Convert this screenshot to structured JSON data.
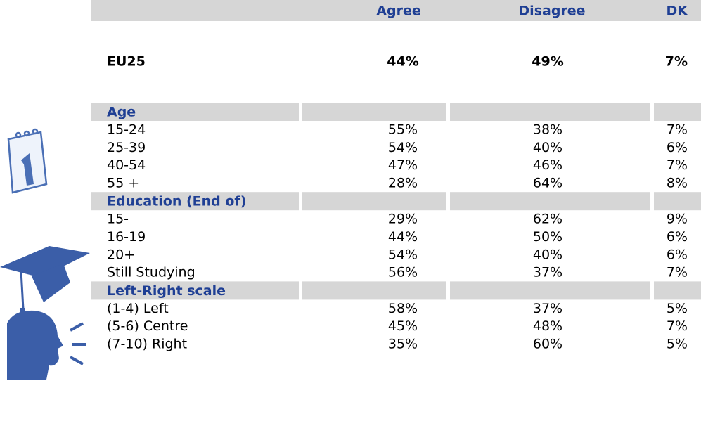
{
  "header": [
    "Agree",
    "Disagree",
    "DK"
  ],
  "total": {
    "label": "EU25",
    "values": [
      "44%",
      "49%",
      "7%"
    ]
  },
  "sections": [
    {
      "title": "Age",
      "rows": [
        {
          "label": "15-24",
          "values": [
            "55%",
            "38%",
            "7%"
          ]
        },
        {
          "label": "25-39",
          "values": [
            "54%",
            "40%",
            "6%"
          ]
        },
        {
          "label": "40-54",
          "values": [
            "47%",
            "46%",
            "7%"
          ]
        },
        {
          "label": "55 +",
          "values": [
            "28%",
            "64%",
            "8%"
          ]
        }
      ]
    },
    {
      "title": "Education (End of)",
      "rows": [
        {
          "label": "15-",
          "values": [
            "29%",
            "62%",
            "9%"
          ]
        },
        {
          "label": "16-19",
          "values": [
            "44%",
            "50%",
            "6%"
          ]
        },
        {
          "label": "20+",
          "values": [
            "54%",
            "40%",
            "6%"
          ]
        },
        {
          "label": "Still Studying",
          "values": [
            "56%",
            "37%",
            "7%"
          ]
        }
      ]
    },
    {
      "title": "Left-Right scale",
      "rows": [
        {
          "label": "(1-4)  Left",
          "values": [
            "58%",
            "37%",
            "5%"
          ]
        },
        {
          "label": "(5-6)  Centre",
          "values": [
            "45%",
            "48%",
            "7%"
          ]
        },
        {
          "label": "(7-10) Right",
          "values": [
            "35%",
            "60%",
            "5%"
          ]
        }
      ]
    }
  ]
}
